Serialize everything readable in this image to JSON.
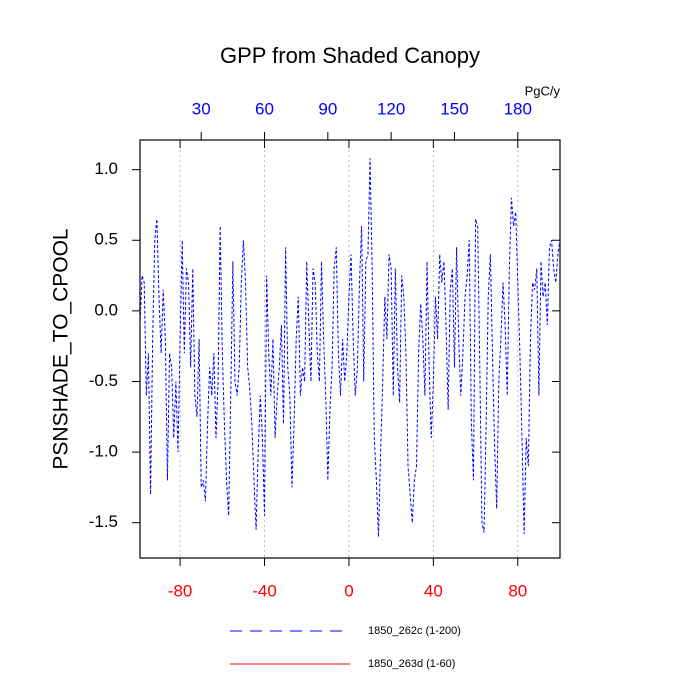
{
  "chart_data": {
    "type": "line",
    "title": "GPP from Shaded Canopy",
    "y_label": "PSNSHADE_TO_CPOOL",
    "x2_label": "PgC/y",
    "xlim": [
      -99,
      100
    ],
    "xticks": [
      -80,
      -40,
      0,
      40,
      80
    ],
    "xtick_color": "#ff0000",
    "x2lim": [
      1,
      200
    ],
    "x2ticks": [
      30,
      60,
      90,
      120,
      150,
      180
    ],
    "x2tick_color": "#0000ff",
    "ylim": [
      -1.75,
      1.21
    ],
    "yticks": [
      {
        "value": 1.0,
        "label": "1.0"
      },
      0.5,
      {
        "value": 0.0,
        "label": "0.0"
      },
      -0.5,
      {
        "value": -1.0,
        "label": "-1.0"
      },
      -1.5
    ],
    "grid": true,
    "x": [
      -99,
      -98,
      -97,
      -96,
      -95,
      -94,
      -93,
      -92,
      -91,
      -90,
      -89,
      -88,
      -87,
      -86,
      -85,
      -84,
      -83,
      -82,
      -81,
      -80,
      -79,
      -78,
      -77,
      -76,
      -75,
      -74,
      -73,
      -72,
      -71,
      -70,
      -69,
      -68,
      -67,
      -66,
      -65,
      -64,
      -63,
      -62,
      -61,
      -60,
      -59,
      -58,
      -57,
      -56,
      -55,
      -54,
      -53,
      -52,
      -51,
      -50,
      -49,
      -48,
      -47,
      -46,
      -45,
      -44,
      -43,
      -42,
      -41,
      -40,
      -39,
      -38,
      -37,
      -36,
      -35,
      -34,
      -33,
      -32,
      -31,
      -30,
      -29,
      -28,
      -27,
      -26,
      -25,
      -24,
      -23,
      -22,
      -21,
      -20,
      -19,
      -18,
      -17,
      -16,
      -15,
      -14,
      -13,
      -12,
      -11,
      -10,
      -9,
      -8,
      -7,
      -6,
      -5,
      -4,
      -3,
      -2,
      -1,
      0,
      1,
      2,
      3,
      4,
      5,
      6,
      7,
      8,
      9,
      10,
      11,
      12,
      13,
      14,
      15,
      16,
      17,
      18,
      19,
      20,
      21,
      22,
      23,
      24,
      25,
      26,
      27,
      28,
      29,
      30,
      31,
      32,
      33,
      34,
      35,
      36,
      37,
      38,
      39,
      40,
      41,
      42,
      43,
      44,
      45,
      46,
      47,
      48,
      49,
      50,
      51,
      52,
      53,
      54,
      55,
      56,
      57,
      58,
      59,
      60,
      61,
      62,
      63,
      64,
      65,
      66,
      67,
      68,
      69,
      70,
      71,
      72,
      73,
      74,
      75,
      76,
      77,
      78,
      79,
      80,
      81,
      82,
      83,
      84,
      85,
      86,
      87,
      88,
      89,
      90,
      91,
      92,
      93,
      94,
      95,
      96,
      97,
      98,
      99,
      100
    ],
    "series": [
      {
        "name": "1850_262c (1-200)",
        "color": "#0000ff",
        "style": "dashed",
        "values": [
          -0.1,
          0.25,
          0.2,
          -0.6,
          -0.3,
          -1.3,
          -0.2,
          0.5,
          0.65,
          0.1,
          -0.3,
          0.15,
          -0.2,
          -1.2,
          -0.3,
          -0.4,
          -0.9,
          -0.5,
          -1.0,
          -0.2,
          0.5,
          -0.3,
          0.3,
          0.2,
          -0.4,
          0.3,
          -0.6,
          -0.75,
          -0.2,
          -1.25,
          -1.2,
          -1.35,
          -0.8,
          -0.4,
          -0.6,
          -0.3,
          -0.9,
          -0.5,
          0.6,
          -0.3,
          -0.8,
          -1.2,
          -1.45,
          -0.6,
          0.35,
          -0.5,
          -0.6,
          -0.4,
          0.2,
          0.5,
          0.2,
          -0.4,
          -0.55,
          -0.8,
          -1.2,
          -1.55,
          -1.0,
          -0.6,
          -0.9,
          -1.45,
          0.25,
          -0.3,
          -0.6,
          -0.2,
          -0.9,
          -0.6,
          -0.4,
          -0.1,
          -0.8,
          0.45,
          -0.4,
          -0.6,
          -1.25,
          -0.8,
          -0.2,
          0.1,
          -0.6,
          -0.4,
          -0.5,
          0.35,
          -0.1,
          -0.5,
          0.3,
          0.2,
          -0.3,
          -0.5,
          0.35,
          -0.2,
          -0.6,
          -1.2,
          -0.7,
          -0.4,
          0.3,
          0.45,
          -0.3,
          -0.6,
          -0.2,
          -0.5,
          -0.3,
          0.1,
          0.4,
          -0.2,
          -0.6,
          -0.4,
          0.2,
          0.6,
          -0.5,
          0.35,
          0.4,
          1.08,
          0.3,
          -0.9,
          -1.2,
          -1.6,
          -1.0,
          -0.5,
          0.1,
          -0.2,
          0.4,
          0.3,
          -0.6,
          0.3,
          -0.4,
          -0.65,
          0.25,
          0.1,
          -0.3,
          -1.1,
          -1.3,
          -1.5,
          -1.2,
          -1.1,
          -0.3,
          0.05,
          -0.2,
          -0.6,
          0.35,
          -0.4,
          -0.9,
          -0.5,
          0.1,
          -0.2,
          0.4,
          0.2,
          0.35,
          -0.1,
          -0.7,
          0.15,
          0.3,
          -0.4,
          0.45,
          -0.2,
          -0.6,
          -0.3,
          0.1,
          0.25,
          0.5,
          -0.8,
          -1.2,
          0.65,
          0.6,
          -0.4,
          -1.5,
          -1.57,
          -0.8,
          0.1,
          0.4,
          -0.3,
          -0.95,
          -1.4,
          -0.5,
          -0.2,
          0.2,
          -0.1,
          -0.6,
          0.3,
          0.8,
          0.6,
          0.7,
          0.2,
          -0.3,
          -0.9,
          -1.58,
          -0.9,
          -1.1,
          -0.2,
          0.2,
          0.15,
          0.3,
          -0.6,
          0.35,
          0.1,
          0.2,
          -0.1,
          0.45,
          0.5,
          0.3,
          0.2,
          0.4,
          0.5
        ]
      },
      {
        "name": "1850_263d (1-60)",
        "color": "#ff0000",
        "style": "solid",
        "values": [
          null,
          null,
          null,
          null,
          null,
          null,
          null,
          null,
          null,
          null,
          null,
          null,
          null,
          null,
          null,
          null,
          null,
          null,
          null,
          null,
          null,
          null,
          null,
          null,
          null,
          null,
          null,
          null,
          null,
          null,
          null,
          null,
          null,
          null,
          null,
          null,
          null,
          null,
          null,
          null,
          null,
          null,
          null,
          null,
          null,
          null,
          null,
          null,
          null,
          null,
          null,
          null,
          null,
          null,
          null,
          null,
          null,
          null,
          null,
          null,
          null,
          null,
          null,
          null,
          null,
          null,
          null,
          null,
          null,
          null,
          null,
          null,
          null,
          null,
          null,
          null,
          null,
          null,
          null,
          null,
          null,
          null,
          null,
          null,
          null,
          null,
          null,
          null,
          null,
          null,
          null,
          null,
          null,
          null,
          null,
          null,
          null,
          null,
          null,
          null,
          null,
          null,
          null,
          null,
          null,
          null,
          null,
          null,
          null,
          null,
          null,
          null,
          null,
          null,
          null,
          null,
          null,
          null,
          null,
          null,
          null,
          null,
          null,
          null,
          null,
          null,
          null,
          null,
          null,
          null,
          null,
          null,
          null,
          null,
          null,
          null,
          null,
          null,
          null,
          null,
          null,
          null,
          null,
          null,
          null,
          null,
          null,
          null,
          null,
          null,
          null,
          null,
          null,
          null,
          null,
          null,
          null,
          null,
          null,
          null,
          null,
          null,
          null,
          null,
          null,
          null,
          null,
          null,
          null,
          null,
          null,
          null,
          null,
          null,
          null,
          null,
          null,
          null,
          null,
          null,
          null,
          null,
          null,
          null,
          null,
          null,
          null,
          null,
          null,
          null,
          null,
          null,
          null,
          null,
          null,
          null,
          null,
          null,
          null,
          null
        ]
      }
    ]
  }
}
